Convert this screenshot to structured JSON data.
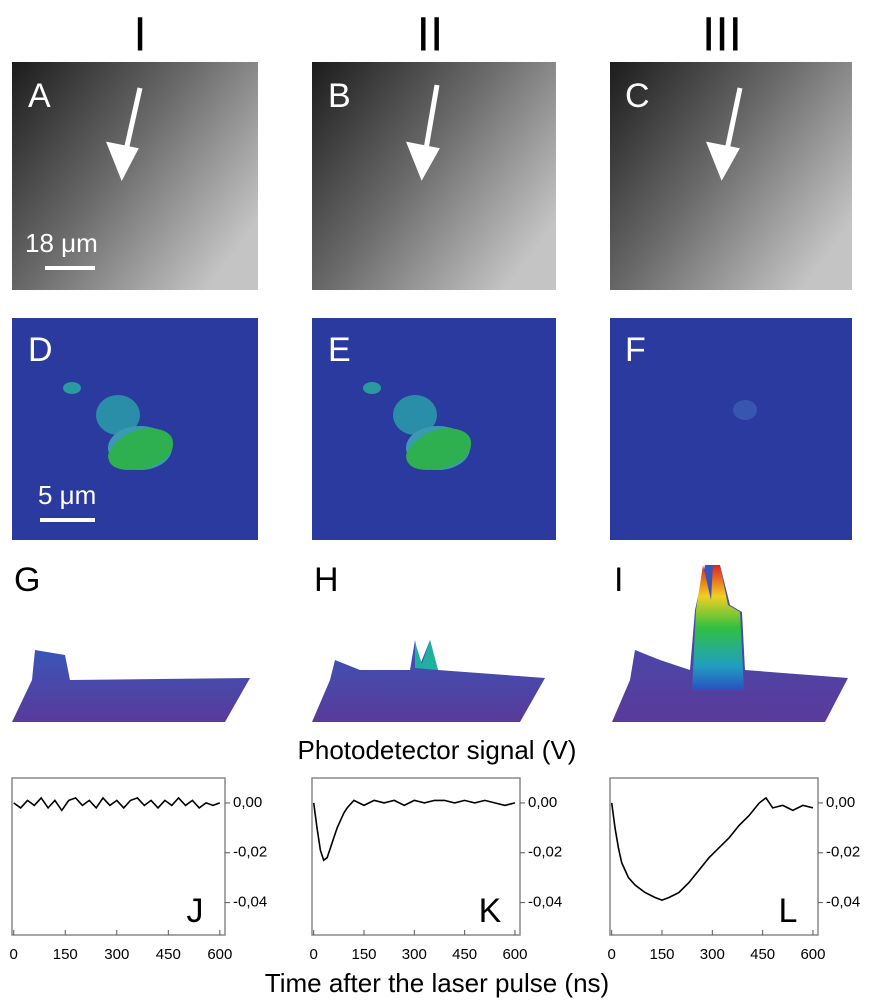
{
  "column_labels": [
    "I",
    "II",
    "III"
  ],
  "panel_labels": [
    "A",
    "B",
    "C",
    "D",
    "E",
    "F",
    "G",
    "H",
    "I"
  ],
  "scale_bars": [
    "18 μm",
    "5 μm"
  ],
  "middle_label": "Photodetector signal (V)",
  "bottom_label": "Time after the laser pulse  (ns)",
  "chart_data": [
    {
      "type": "line",
      "label": "J",
      "color": "#000000",
      "x": [
        0,
        20,
        40,
        60,
        80,
        100,
        120,
        140,
        160,
        180,
        200,
        220,
        240,
        260,
        280,
        300,
        320,
        340,
        360,
        380,
        400,
        420,
        440,
        460,
        480,
        500,
        520,
        540,
        560,
        580,
        600
      ],
      "values": [
        0,
        -0.002,
        0.001,
        -0.001,
        0.002,
        -0.002,
        0.001,
        -0.003,
        0.001,
        0.002,
        -0.001,
        0.001,
        -0.002,
        0.002,
        -0.001,
        0.001,
        -0.002,
        0.001,
        0.002,
        -0.001,
        0.001,
        -0.002,
        0.001,
        -0.001,
        0.002,
        -0.001,
        0.001,
        -0.002,
        0,
        -0.001,
        0
      ],
      "xlim": [
        -5,
        615
      ],
      "xticks": [
        0,
        150,
        300,
        450,
        600
      ],
      "ylim": [
        -0.053,
        0.01
      ],
      "yticks": [
        {
          "value": 0,
          "label": "0,00"
        },
        {
          "value": -0.02,
          "label": "-0,02"
        },
        {
          "value": -0.04,
          "label": "-0,04"
        }
      ]
    },
    {
      "type": "line",
      "label": "K",
      "color": "#000000",
      "x": [
        0,
        10,
        20,
        30,
        40,
        50,
        60,
        70,
        80,
        90,
        100,
        120,
        150,
        180,
        210,
        240,
        270,
        300,
        330,
        360,
        390,
        420,
        450,
        480,
        510,
        540,
        570,
        600
      ],
      "values": [
        0,
        -0.01,
        -0.019,
        -0.023,
        -0.022,
        -0.018,
        -0.014,
        -0.01,
        -0.007,
        -0.004,
        -0.002,
        0.001,
        -0.001,
        0.001,
        0,
        0.001,
        -0.001,
        0.001,
        0,
        0.001,
        0.001,
        0,
        0.001,
        0,
        0.001,
        0,
        -0.001,
        0
      ],
      "xlim": [
        -5,
        615
      ],
      "xticks": [
        0,
        150,
        300,
        450,
        600
      ],
      "ylim": [
        -0.053,
        0.01
      ],
      "yticks": [
        {
          "value": 0,
          "label": "0,00"
        },
        {
          "value": -0.02,
          "label": "-0,02"
        },
        {
          "value": -0.04,
          "label": "-0,04"
        }
      ]
    },
    {
      "type": "line",
      "label": "L",
      "color": "#000000",
      "x": [
        0,
        10,
        20,
        30,
        50,
        70,
        100,
        130,
        150,
        170,
        200,
        230,
        260,
        290,
        320,
        350,
        380,
        410,
        440,
        460,
        480,
        510,
        540,
        570,
        600
      ],
      "values": [
        0,
        -0.01,
        -0.018,
        -0.024,
        -0.03,
        -0.033,
        -0.036,
        -0.038,
        -0.039,
        -0.038,
        -0.036,
        -0.032,
        -0.027,
        -0.022,
        -0.018,
        -0.014,
        -0.009,
        -0.005,
        0,
        0.002,
        -0.002,
        -0.001,
        -0.003,
        -0.001,
        -0.002
      ],
      "xlim": [
        -5,
        615
      ],
      "xticks": [
        0,
        150,
        300,
        450,
        600
      ],
      "ylim": [
        -0.053,
        0.01
      ],
      "yticks": [
        {
          "value": 0,
          "label": "0,00"
        },
        {
          "value": -0.02,
          "label": "-0,02"
        },
        {
          "value": -0.04,
          "label": "-0,04"
        }
      ]
    }
  ]
}
